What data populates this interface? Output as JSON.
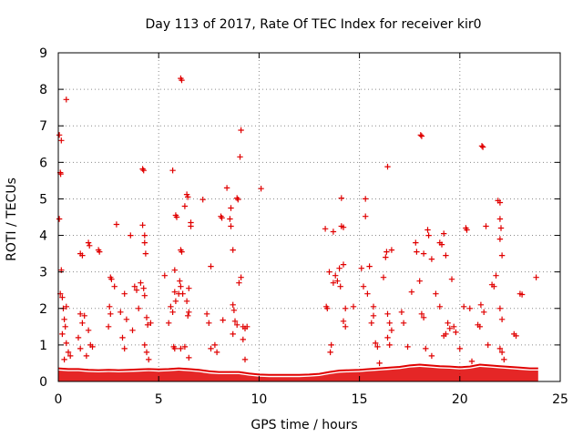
{
  "chart_data": {
    "type": "scatter",
    "title": "Day 113 of 2017, Rate Of TEC Index for receiver kir0",
    "xlabel": "GPS time / hours",
    "ylabel": "ROTI / TECUs",
    "xlim": [
      0,
      25
    ],
    "ylim": [
      0,
      9
    ],
    "xticks": [
      0,
      5,
      10,
      15,
      20,
      25
    ],
    "yticks": [
      0,
      1,
      2,
      3,
      4,
      5,
      6,
      7,
      8,
      9
    ],
    "grid": true,
    "legend": "none",
    "marker": "plus",
    "color": "#e00000",
    "series": [
      {
        "points": [
          [
            0.05,
            6.75
          ],
          [
            0.15,
            6.6
          ],
          [
            0.1,
            5.72
          ],
          [
            0.12,
            5.68
          ],
          [
            0.05,
            4.45
          ],
          [
            0.15,
            3.05
          ],
          [
            0.1,
            2.4
          ],
          [
            0.2,
            2.3
          ],
          [
            0.25,
            2.0
          ],
          [
            0.3,
            1.7
          ],
          [
            0.35,
            1.5
          ],
          [
            0.4,
            2.05
          ],
          [
            0.2,
            1.3
          ],
          [
            0.4,
            1.05
          ],
          [
            0.5,
            0.8
          ],
          [
            0.3,
            0.6
          ],
          [
            0.6,
            0.7
          ],
          [
            0.4,
            7.72
          ],
          [
            1.1,
            3.5
          ],
          [
            1.2,
            3.45
          ],
          [
            1.5,
            3.8
          ],
          [
            1.55,
            3.72
          ],
          [
            1.1,
            1.85
          ],
          [
            1.3,
            1.8
          ],
          [
            1.2,
            1.6
          ],
          [
            1.5,
            1.4
          ],
          [
            1.6,
            1.0
          ],
          [
            1.7,
            0.95
          ],
          [
            1.0,
            1.2
          ],
          [
            1.1,
            0.9
          ],
          [
            1.4,
            0.7
          ],
          [
            2.0,
            3.6
          ],
          [
            2.05,
            3.55
          ],
          [
            2.6,
            2.85
          ],
          [
            2.65,
            2.8
          ],
          [
            2.55,
            2.05
          ],
          [
            2.6,
            1.85
          ],
          [
            2.5,
            1.5
          ],
          [
            2.8,
            2.6
          ],
          [
            2.9,
            4.3
          ],
          [
            3.1,
            1.9
          ],
          [
            3.3,
            2.4
          ],
          [
            3.4,
            1.7
          ],
          [
            3.2,
            1.2
          ],
          [
            3.3,
            0.9
          ],
          [
            3.6,
            4.0
          ],
          [
            3.8,
            2.6
          ],
          [
            3.9,
            2.5
          ],
          [
            3.7,
            1.4
          ],
          [
            4.0,
            2.0
          ],
          [
            4.1,
            2.7
          ],
          [
            4.2,
            5.82
          ],
          [
            4.25,
            5.78
          ],
          [
            4.2,
            4.28
          ],
          [
            4.3,
            4.0
          ],
          [
            4.3,
            3.8
          ],
          [
            4.35,
            3.5
          ],
          [
            4.25,
            2.55
          ],
          [
            4.3,
            2.35
          ],
          [
            4.4,
            1.75
          ],
          [
            4.45,
            1.55
          ],
          [
            4.3,
            1.0
          ],
          [
            4.4,
            0.8
          ],
          [
            4.5,
            0.6
          ],
          [
            4.6,
            1.6
          ],
          [
            5.3,
            2.9
          ],
          [
            5.5,
            1.6
          ],
          [
            5.6,
            2.05
          ],
          [
            5.8,
            3.05
          ],
          [
            5.7,
            5.78
          ],
          [
            5.85,
            4.55
          ],
          [
            5.9,
            4.5
          ],
          [
            5.8,
            2.45
          ],
          [
            5.85,
            2.2
          ],
          [
            5.7,
            1.9
          ],
          [
            5.75,
            0.95
          ],
          [
            5.8,
            0.9
          ],
          [
            6.0,
            2.4
          ],
          [
            6.05,
            2.75
          ],
          [
            6.1,
            8.3
          ],
          [
            6.15,
            8.25
          ],
          [
            6.1,
            3.6
          ],
          [
            6.15,
            3.55
          ],
          [
            6.1,
            2.6
          ],
          [
            6.2,
            2.4
          ],
          [
            6.3,
            4.8
          ],
          [
            6.4,
            5.12
          ],
          [
            6.45,
            5.05
          ],
          [
            6.5,
            2.55
          ],
          [
            6.4,
            2.2
          ],
          [
            6.5,
            1.9
          ],
          [
            6.45,
            1.8
          ],
          [
            6.6,
            4.35
          ],
          [
            6.6,
            4.25
          ],
          [
            6.5,
            0.65
          ],
          [
            6.1,
            0.9
          ],
          [
            6.3,
            0.95
          ],
          [
            7.2,
            4.98
          ],
          [
            7.6,
            3.15
          ],
          [
            7.4,
            1.85
          ],
          [
            7.5,
            1.6
          ],
          [
            7.8,
            1.0
          ],
          [
            7.6,
            0.9
          ],
          [
            7.9,
            0.8
          ],
          [
            8.1,
            4.52
          ],
          [
            8.15,
            4.48
          ],
          [
            8.2,
            1.68
          ],
          [
            8.4,
            5.3
          ],
          [
            8.6,
            4.75
          ],
          [
            8.55,
            4.45
          ],
          [
            8.6,
            4.25
          ],
          [
            8.7,
            3.6
          ],
          [
            8.7,
            2.1
          ],
          [
            8.75,
            1.95
          ],
          [
            8.8,
            1.65
          ],
          [
            8.9,
            1.55
          ],
          [
            8.7,
            1.3
          ],
          [
            8.9,
            5.02
          ],
          [
            8.95,
            4.98
          ],
          [
            9.0,
            2.7
          ],
          [
            9.1,
            2.85
          ],
          [
            9.05,
            6.15
          ],
          [
            9.1,
            6.88
          ],
          [
            9.2,
            1.5
          ],
          [
            9.3,
            1.45
          ],
          [
            9.4,
            1.5
          ],
          [
            9.2,
            1.15
          ],
          [
            9.3,
            0.6
          ],
          [
            10.1,
            5.28
          ],
          [
            13.3,
            4.18
          ],
          [
            13.35,
            2.05
          ],
          [
            13.4,
            2.0
          ],
          [
            13.5,
            3.0
          ],
          [
            13.55,
            0.8
          ],
          [
            13.6,
            1.0
          ],
          [
            13.7,
            2.7
          ],
          [
            13.7,
            4.1
          ],
          [
            13.8,
            2.9
          ],
          [
            13.9,
            2.75
          ],
          [
            14.0,
            3.1
          ],
          [
            14.05,
            2.6
          ],
          [
            14.1,
            4.25
          ],
          [
            14.2,
            4.22
          ],
          [
            14.1,
            5.02
          ],
          [
            14.2,
            3.2
          ],
          [
            14.3,
            2.0
          ],
          [
            14.2,
            1.65
          ],
          [
            14.3,
            1.5
          ],
          [
            14.7,
            2.05
          ],
          [
            15.1,
            3.1
          ],
          [
            15.2,
            2.6
          ],
          [
            15.3,
            4.52
          ],
          [
            15.3,
            5.0
          ],
          [
            15.4,
            2.4
          ],
          [
            15.5,
            3.15
          ],
          [
            15.6,
            1.6
          ],
          [
            15.7,
            1.8
          ],
          [
            15.7,
            2.05
          ],
          [
            15.8,
            1.05
          ],
          [
            15.9,
            0.95
          ],
          [
            16.0,
            0.5
          ],
          [
            16.2,
            2.85
          ],
          [
            16.3,
            3.4
          ],
          [
            16.35,
            3.55
          ],
          [
            16.4,
            5.88
          ],
          [
            16.4,
            1.85
          ],
          [
            16.5,
            1.6
          ],
          [
            16.6,
            1.4
          ],
          [
            16.4,
            1.2
          ],
          [
            16.5,
            1.0
          ],
          [
            16.6,
            3.6
          ],
          [
            17.1,
            1.9
          ],
          [
            17.2,
            1.6
          ],
          [
            17.4,
            0.95
          ],
          [
            17.6,
            2.45
          ],
          [
            17.8,
            3.8
          ],
          [
            17.85,
            3.55
          ],
          [
            18.0,
            2.75
          ],
          [
            18.05,
            6.75
          ],
          [
            18.1,
            6.72
          ],
          [
            18.2,
            3.5
          ],
          [
            18.1,
            1.85
          ],
          [
            18.2,
            1.75
          ],
          [
            18.3,
            0.9
          ],
          [
            18.4,
            4.15
          ],
          [
            18.45,
            4.0
          ],
          [
            18.6,
            3.35
          ],
          [
            18.8,
            2.4
          ],
          [
            18.6,
            0.7
          ],
          [
            19.0,
            3.8
          ],
          [
            19.1,
            3.75
          ],
          [
            19.0,
            2.05
          ],
          [
            19.2,
            4.05
          ],
          [
            19.3,
            3.45
          ],
          [
            19.4,
            1.6
          ],
          [
            19.5,
            1.45
          ],
          [
            19.2,
            1.25
          ],
          [
            19.3,
            1.3
          ],
          [
            19.6,
            2.8
          ],
          [
            19.7,
            1.5
          ],
          [
            19.8,
            1.35
          ],
          [
            20.0,
            0.9
          ],
          [
            20.2,
            2.05
          ],
          [
            20.3,
            4.2
          ],
          [
            20.35,
            4.15
          ],
          [
            20.5,
            2.0
          ],
          [
            20.6,
            0.55
          ],
          [
            20.9,
            1.55
          ],
          [
            21.0,
            1.5
          ],
          [
            21.05,
            2.1
          ],
          [
            21.1,
            6.45
          ],
          [
            21.15,
            6.42
          ],
          [
            21.2,
            1.9
          ],
          [
            21.3,
            4.25
          ],
          [
            21.4,
            1.0
          ],
          [
            21.6,
            2.65
          ],
          [
            21.7,
            2.6
          ],
          [
            21.8,
            2.9
          ],
          [
            21.9,
            4.95
          ],
          [
            22.0,
            4.9
          ],
          [
            22.0,
            4.45
          ],
          [
            22.05,
            4.2
          ],
          [
            22.0,
            3.9
          ],
          [
            22.1,
            3.45
          ],
          [
            22.0,
            2.0
          ],
          [
            22.1,
            1.7
          ],
          [
            22.0,
            0.9
          ],
          [
            22.1,
            0.8
          ],
          [
            22.2,
            0.6
          ],
          [
            22.7,
            1.3
          ],
          [
            22.8,
            1.25
          ],
          [
            23.0,
            2.4
          ],
          [
            23.1,
            2.38
          ],
          [
            23.8,
            2.85
          ]
        ]
      }
    ],
    "baseline_band": [
      [
        0.0,
        0.3
      ],
      [
        0.5,
        0.28
      ],
      [
        1.0,
        0.28
      ],
      [
        1.5,
        0.26
      ],
      [
        2.0,
        0.25
      ],
      [
        2.5,
        0.26
      ],
      [
        3.0,
        0.25
      ],
      [
        3.5,
        0.26
      ],
      [
        4.0,
        0.27
      ],
      [
        4.5,
        0.28
      ],
      [
        5.0,
        0.27
      ],
      [
        5.5,
        0.28
      ],
      [
        6.0,
        0.3
      ],
      [
        6.5,
        0.28
      ],
      [
        7.0,
        0.26
      ],
      [
        7.5,
        0.22
      ],
      [
        8.0,
        0.2
      ],
      [
        8.5,
        0.2
      ],
      [
        9.0,
        0.2
      ],
      [
        9.5,
        0.16
      ],
      [
        10.0,
        0.13
      ],
      [
        10.5,
        0.12
      ],
      [
        11.0,
        0.12
      ],
      [
        11.5,
        0.12
      ],
      [
        12.0,
        0.12
      ],
      [
        12.5,
        0.13
      ],
      [
        13.0,
        0.15
      ],
      [
        13.5,
        0.2
      ],
      [
        14.0,
        0.24
      ],
      [
        14.5,
        0.25
      ],
      [
        15.0,
        0.26
      ],
      [
        15.5,
        0.28
      ],
      [
        16.0,
        0.3
      ],
      [
        16.5,
        0.32
      ],
      [
        17.0,
        0.34
      ],
      [
        17.5,
        0.38
      ],
      [
        18.0,
        0.4
      ],
      [
        18.5,
        0.38
      ],
      [
        19.0,
        0.36
      ],
      [
        19.5,
        0.35
      ],
      [
        20.0,
        0.33
      ],
      [
        20.5,
        0.35
      ],
      [
        21.0,
        0.4
      ],
      [
        21.5,
        0.38
      ],
      [
        22.0,
        0.36
      ],
      [
        22.5,
        0.34
      ],
      [
        23.0,
        0.32
      ],
      [
        23.5,
        0.3
      ],
      [
        23.9,
        0.3
      ]
    ]
  }
}
